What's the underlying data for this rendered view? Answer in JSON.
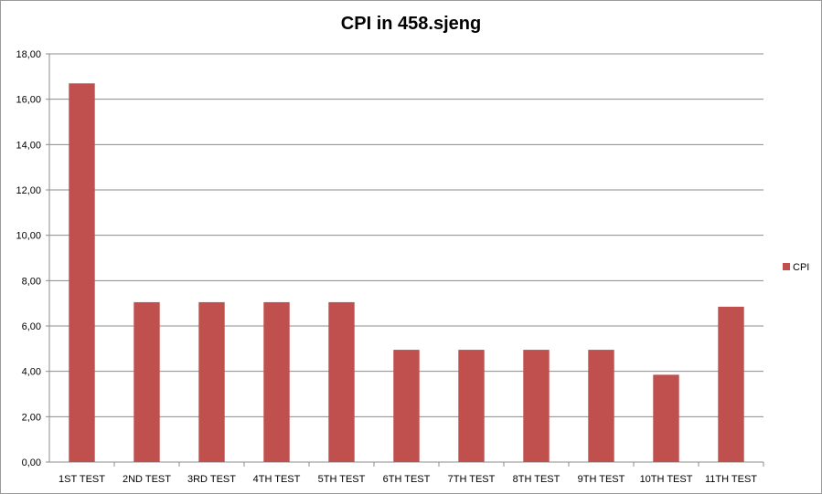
{
  "chart_data": {
    "type": "bar",
    "title": "CPI in 458.sjeng",
    "xlabel": "",
    "ylabel": "",
    "categories": [
      "1ST TEST",
      "2ND TEST",
      "3RD TEST",
      "4TH TEST",
      "5TH TEST",
      "6TH TEST",
      "7TH TEST",
      "8TH TEST",
      "9TH TEST",
      "10TH TEST",
      "11TH TEST"
    ],
    "series": [
      {
        "name": "CPI",
        "color": "#c0504d",
        "values": [
          16.7,
          7.05,
          7.05,
          7.05,
          7.05,
          4.95,
          4.95,
          4.95,
          4.95,
          3.85,
          6.85
        ]
      }
    ],
    "ylim": [
      0,
      18
    ],
    "yticks": [
      0,
      2,
      4,
      6,
      8,
      10,
      12,
      14,
      16,
      18
    ],
    "ytick_labels": [
      "0,00",
      "2,00",
      "4,00",
      "6,00",
      "8,00",
      "10,00",
      "12,00",
      "14,00",
      "16,00",
      "18,00"
    ],
    "grid": true,
    "legend_position": "right"
  }
}
